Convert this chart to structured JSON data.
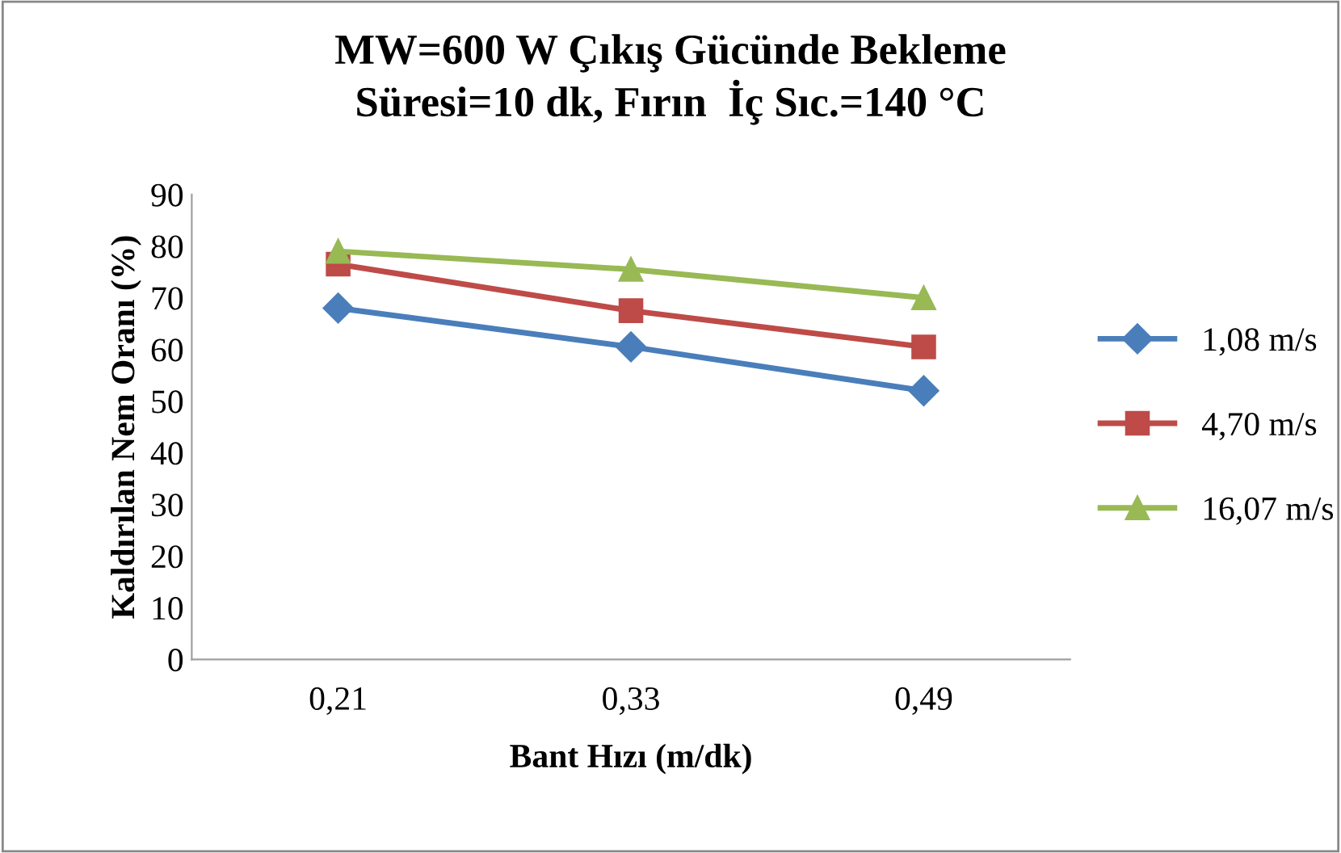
{
  "chart_data": {
    "type": "line",
    "title": "MW=600 W Çıkış Gücünde Bekleme\nSüresi=10 dk, Fırın  İç Sıc.=140 °C",
    "xlabel": "Bant Hızı (m/dk)",
    "ylabel": "Kaldırılan Nem Oranı (%)",
    "categories": [
      "0,21",
      "0,33",
      "0,49"
    ],
    "series": [
      {
        "name": "1,08 m/s",
        "color": "#4a7ebb",
        "marker": "diamond",
        "values": [
          68,
          60.5,
          52
        ]
      },
      {
        "name": "4,70 m/s",
        "color": "#be4b48",
        "marker": "square",
        "values": [
          76.5,
          67.5,
          60.5
        ]
      },
      {
        "name": "16,07 m/s",
        "color": "#98b954",
        "marker": "triangle",
        "values": [
          79,
          75.5,
          70
        ]
      }
    ],
    "ylim": [
      0,
      90
    ],
    "yticks": [
      0,
      10,
      20,
      30,
      40,
      50,
      60,
      70,
      80,
      90
    ],
    "grid": false,
    "legend": "right",
    "line_style": "solid"
  }
}
